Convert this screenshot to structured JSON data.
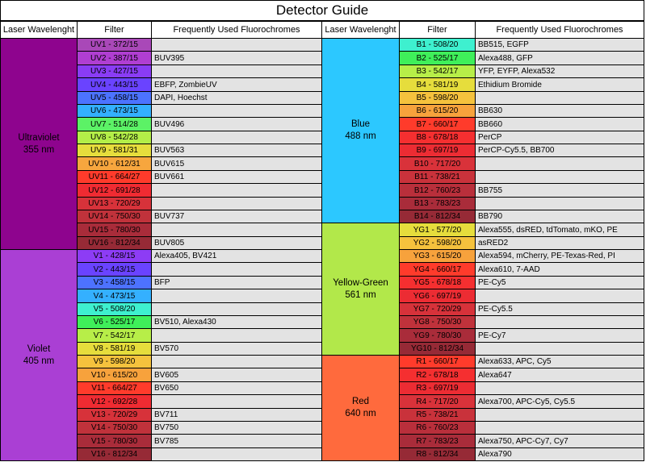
{
  "title": "Detector Guide",
  "headers": {
    "laser": "Laser Wavelenght",
    "filter": "Filter",
    "fluorochromes": "Frequently Used Fluorochromes"
  },
  "left_groups": [
    {
      "name": "Ultraviolet",
      "wavelength": "355 nm",
      "color": "#8e048e",
      "start": 0,
      "count": 16
    },
    {
      "name": "Violet",
      "wavelength": "405 nm",
      "color": "#aa3fd4",
      "start": 16,
      "count": 16
    }
  ],
  "right_groups": [
    {
      "name": "Blue",
      "wavelength": "488 nm",
      "color": "#2cc8ff",
      "start": 0,
      "count": 14
    },
    {
      "name": "Yellow-Green",
      "wavelength": "561 nm",
      "color": "#b2e84a",
      "start": 14,
      "count": 10
    },
    {
      "name": "Red",
      "wavelength": "640 nm",
      "color": "#ff6a3d",
      "start": 24,
      "count": 8
    }
  ],
  "left_rows": [
    {
      "filter": "UV1 - 372/15",
      "color": "#a948b8",
      "fluor": ""
    },
    {
      "filter": "UV2 - 387/15",
      "color": "#b03ed2",
      "fluor": "BUV395"
    },
    {
      "filter": "UV3 - 427/15",
      "color": "#8a3cf5",
      "fluor": ""
    },
    {
      "filter": "UV4 - 443/15",
      "color": "#6a43ff",
      "fluor": "EBFP, ZombieUV"
    },
    {
      "filter": "UV5 - 458/15",
      "color": "#4c73ff",
      "fluor": "DAPI, Hoechst"
    },
    {
      "filter": "UV6 - 473/15",
      "color": "#33b0ff",
      "fluor": ""
    },
    {
      "filter": "UV7 - 514/28",
      "color": "#5cf266",
      "fluor": "BUV496"
    },
    {
      "filter": "UV8 - 542/28",
      "color": "#b3ee48",
      "fluor": ""
    },
    {
      "filter": "UV9 - 581/31",
      "color": "#e6dd3c",
      "fluor": "BUV563"
    },
    {
      "filter": "UV10 - 612/31",
      "color": "#f7a63e",
      "fluor": "BUV615"
    },
    {
      "filter": "UV11 - 664/27",
      "color": "#ff3b2b",
      "fluor": "BUV661"
    },
    {
      "filter": "UV12 - 691/28",
      "color": "#f02b32",
      "fluor": ""
    },
    {
      "filter": "UV13 - 720/29",
      "color": "#d7323a",
      "fluor": ""
    },
    {
      "filter": "UV14 - 750/30",
      "color": "#c0323b",
      "fluor": "BUV737"
    },
    {
      "filter": "UV15 - 780/30",
      "color": "#a92c3a",
      "fluor": ""
    },
    {
      "filter": "UV16 - 812/34",
      "color": "#962a36",
      "fluor": "BUV805"
    },
    {
      "filter": "V1 - 428/15",
      "color": "#8d3cf5",
      "fluor": "Alexa405, BV421"
    },
    {
      "filter": "V2 - 443/15",
      "color": "#6a43ff",
      "fluor": ""
    },
    {
      "filter": "V3 - 458/15",
      "color": "#4d72ff",
      "fluor": "BFP"
    },
    {
      "filter": "V4 - 473/15",
      "color": "#34b0ff",
      "fluor": ""
    },
    {
      "filter": "V5 - 508/20",
      "color": "#3ef0cf",
      "fluor": ""
    },
    {
      "filter": "V6 - 525/17",
      "color": "#3fef5a",
      "fluor": "BV510, Alexa430"
    },
    {
      "filter": "V7 - 542/17",
      "color": "#b7ee48",
      "fluor": ""
    },
    {
      "filter": "V8 - 581/19",
      "color": "#e6dd3c",
      "fluor": "BV570"
    },
    {
      "filter": "V9 - 598/20",
      "color": "#f5c23d",
      "fluor": ""
    },
    {
      "filter": "V10 - 615/20",
      "color": "#f7a23c",
      "fluor": "BV605"
    },
    {
      "filter": "V11 - 664/27",
      "color": "#ff3b2b",
      "fluor": "BV650"
    },
    {
      "filter": "V12 - 692/28",
      "color": "#f02b32",
      "fluor": ""
    },
    {
      "filter": "V13 - 720/29",
      "color": "#d7323a",
      "fluor": "BV711"
    },
    {
      "filter": "V14 - 750/30",
      "color": "#c0323b",
      "fluor": "BV750"
    },
    {
      "filter": "V15 - 780/30",
      "color": "#a92c3a",
      "fluor": "BV785"
    },
    {
      "filter": "V16 - 812/34",
      "color": "#962a36",
      "fluor": ""
    }
  ],
  "right_rows": [
    {
      "filter": "B1 - 508/20",
      "color": "#3ef0cf",
      "fluor": "BB515, EGFP"
    },
    {
      "filter": "B2 - 525/17",
      "color": "#3fef5a",
      "fluor": "Alexa488, GFP"
    },
    {
      "filter": "B3 - 542/17",
      "color": "#b7ee48",
      "fluor": "YFP, EYFP, Alexa532"
    },
    {
      "filter": "B4 - 581/19",
      "color": "#e6dd3c",
      "fluor": "Ethidium Bromide"
    },
    {
      "filter": "B5 - 598/20",
      "color": "#f5c23d",
      "fluor": ""
    },
    {
      "filter": "B6 - 615/20",
      "color": "#f7a23c",
      "fluor": "BB630"
    },
    {
      "filter": "B7 - 660/17",
      "color": "#ff3b2b",
      "fluor": "BB660"
    },
    {
      "filter": "B8 - 678/18",
      "color": "#f52f30",
      "fluor": "PerCP"
    },
    {
      "filter": "B9 - 697/19",
      "color": "#ec2c33",
      "fluor": "PerCP-Cy5.5, BB700"
    },
    {
      "filter": "B10 - 717/20",
      "color": "#d9323a",
      "fluor": ""
    },
    {
      "filter": "B11 - 738/21",
      "color": "#c9323b",
      "fluor": ""
    },
    {
      "filter": "B12 - 760/23",
      "color": "#b92f3b",
      "fluor": "BB755"
    },
    {
      "filter": "B13 - 783/23",
      "color": "#a92c3a",
      "fluor": ""
    },
    {
      "filter": "B14 - 812/34",
      "color": "#962a36",
      "fluor": "BB790"
    },
    {
      "filter": "YG1 - 577/20",
      "color": "#e6dd3c",
      "fluor": "Alexa555, dsRED, tdTomato, mKO, PE"
    },
    {
      "filter": "YG2 - 598/20",
      "color": "#f5c23d",
      "fluor": "asRED2"
    },
    {
      "filter": "YG3 - 615/20",
      "color": "#f7a23c",
      "fluor": "Alexa594, mCherry, PE-Texas-Red, PI"
    },
    {
      "filter": "YG4 - 660/17",
      "color": "#ff3b2b",
      "fluor": "Alexa610, 7-AAD"
    },
    {
      "filter": "YG5 - 678/18",
      "color": "#f52f30",
      "fluor": "PE-Cy5"
    },
    {
      "filter": "YG6 - 697/19",
      "color": "#ec2c33",
      "fluor": ""
    },
    {
      "filter": "YG7 - 720/29",
      "color": "#d7323a",
      "fluor": "PE-Cy5.5"
    },
    {
      "filter": "YG8 - 750/30",
      "color": "#c0323b",
      "fluor": ""
    },
    {
      "filter": "YG9 - 780/30",
      "color": "#a92c3a",
      "fluor": "PE-Cy7"
    },
    {
      "filter": "YG10 - 812/34",
      "color": "#962a36",
      "fluor": ""
    },
    {
      "filter": "R1 - 660/17",
      "color": "#ff3b2b",
      "fluor": "Alexa633, APC, Cy5"
    },
    {
      "filter": "R2 - 678/18",
      "color": "#f52f30",
      "fluor": "Alexa647"
    },
    {
      "filter": "R3 - 697/19",
      "color": "#ec2c33",
      "fluor": ""
    },
    {
      "filter": "R4 - 717/20",
      "color": "#d9323a",
      "fluor": "Alexa700, APC-Cy5, Cy5.5"
    },
    {
      "filter": "R5 - 738/21",
      "color": "#c9323b",
      "fluor": ""
    },
    {
      "filter": "R6 - 760/23",
      "color": "#b92f3b",
      "fluor": ""
    },
    {
      "filter": "R7 - 783/23",
      "color": "#a92c3a",
      "fluor": "Alexa750, APC-Cy7, Cy7"
    },
    {
      "filter": "R8 - 812/34",
      "color": "#962a36",
      "fluor": "Alexa790"
    }
  ]
}
